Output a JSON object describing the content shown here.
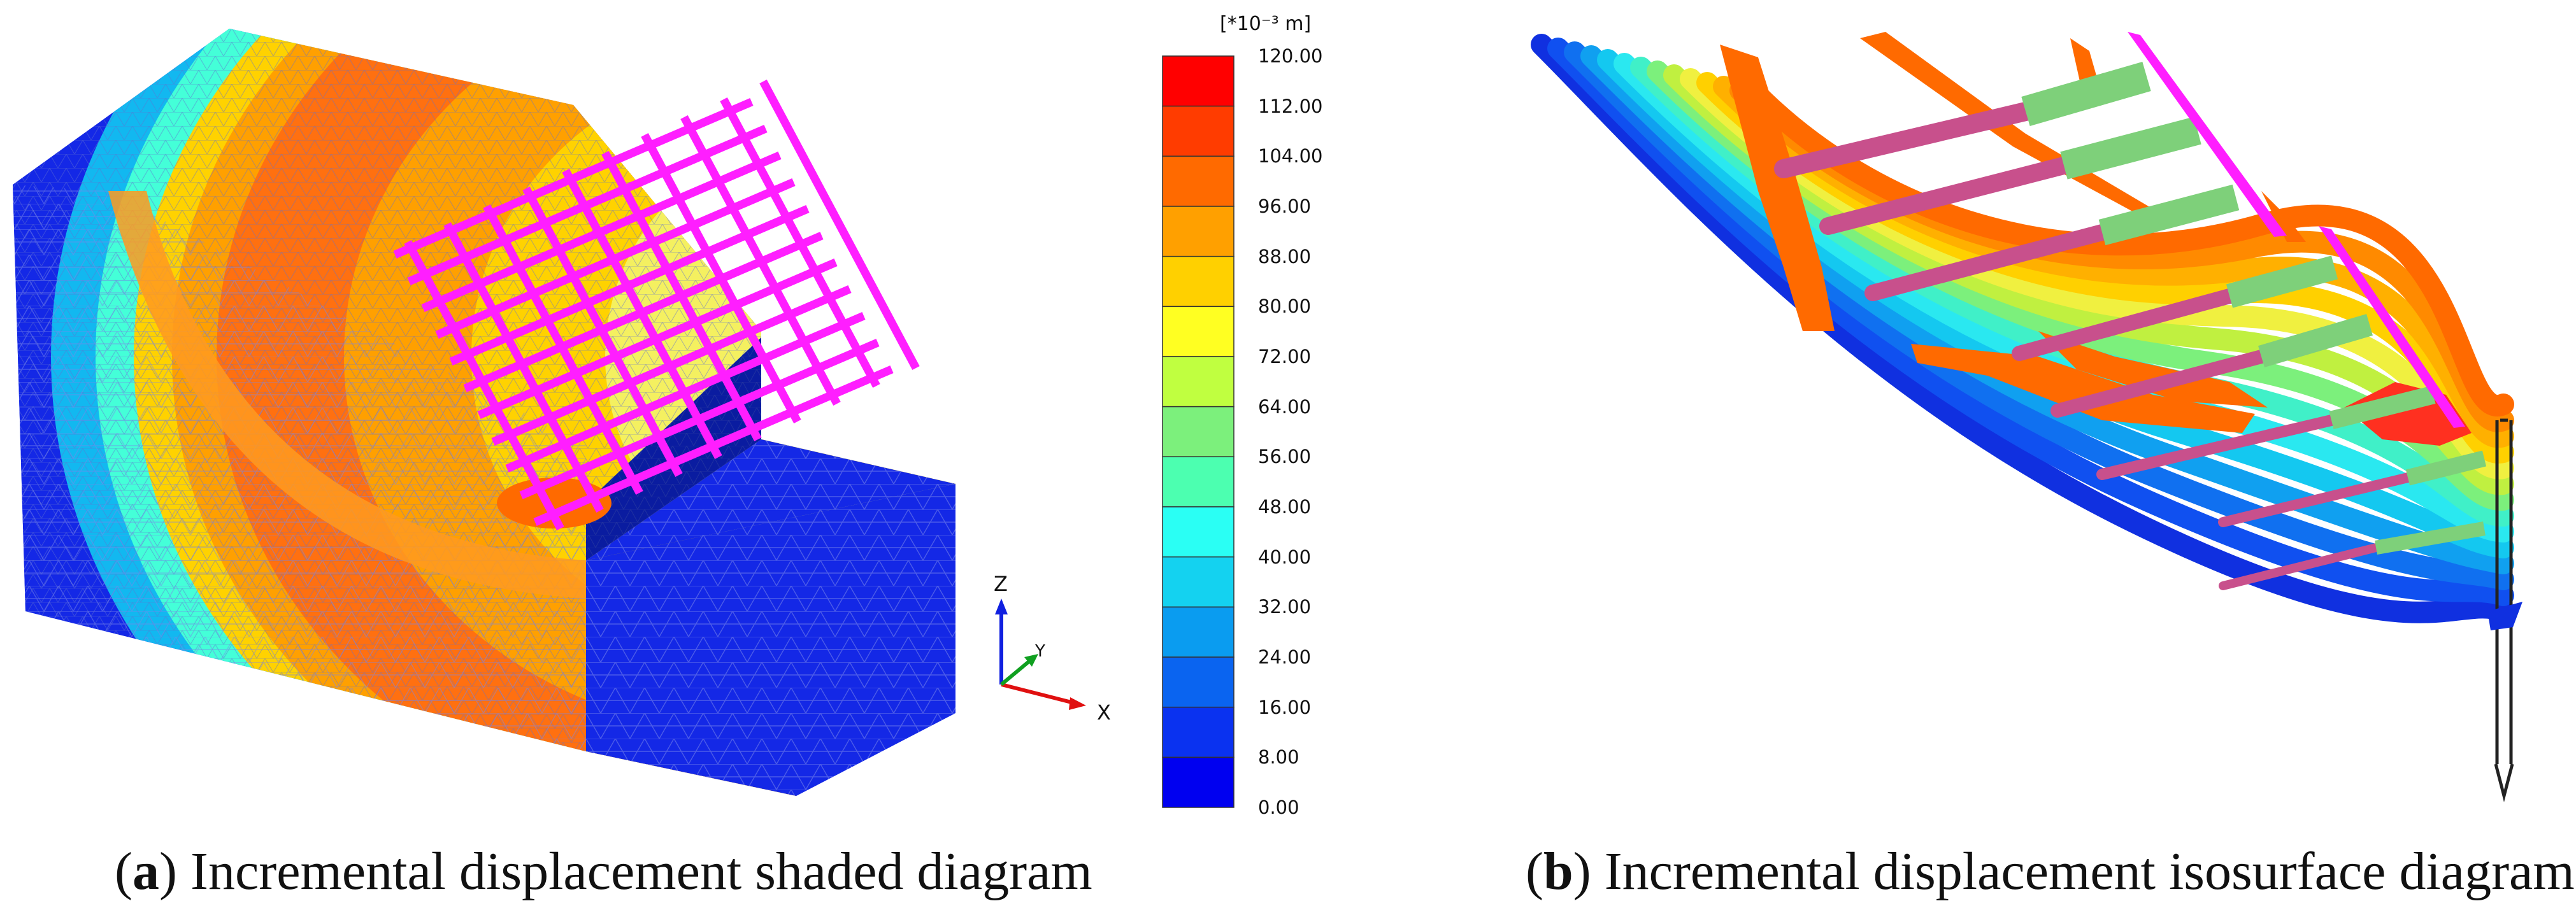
{
  "colorbar": {
    "unit": "[*10⁻³ m]",
    "ticks": [
      "120.00",
      "112.00",
      "104.00",
      "96.00",
      "88.00",
      "80.00",
      "72.00",
      "64.00",
      "56.00",
      "48.00",
      "40.00",
      "32.00",
      "24.00",
      "16.00",
      "8.00",
      "0.00"
    ],
    "colors": [
      "#ff0000",
      "#ff3c00",
      "#ff6a00",
      "#ffa000",
      "#ffd000",
      "#ffff22",
      "#c0ff40",
      "#7cf07c",
      "#4cffb0",
      "#2afff4",
      "#14d2f0",
      "#0a9cf0",
      "#0a64f0",
      "#0a32f0",
      "#0000f0"
    ]
  },
  "axes": {
    "z": "Z",
    "y": "Y",
    "x": "X"
  },
  "captions": {
    "a_letter": "a",
    "a_text": "Incremental displacement shaded diagram",
    "b_letter": "b",
    "b_text": "Incremental displacement isosurface diagram"
  },
  "palette": {
    "mesh_blue": "#1428e6",
    "grid_magenta": "#ff1eff",
    "anchor_pink": "#c8508c",
    "anchor_green": "#7ed07a"
  }
}
